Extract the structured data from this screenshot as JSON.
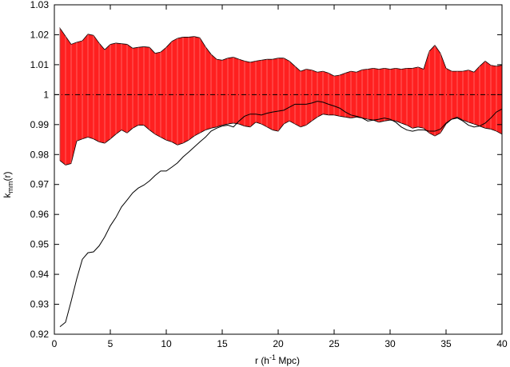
{
  "chart_data": {
    "type": "line",
    "title": "",
    "xlabel_parts": {
      "pre": "r (h",
      "sup": "-1",
      "post": " Mpc)"
    },
    "ylabel_parts": {
      "pre": "k",
      "sub": "mm",
      "post": "(r)"
    },
    "xlim": [
      0,
      40
    ],
    "ylim": [
      0.92,
      1.03
    ],
    "xticks": [
      0,
      5,
      10,
      15,
      20,
      25,
      30,
      35,
      40
    ],
    "xtick_labels": [
      "0",
      "5",
      "10",
      "15",
      "20",
      "25",
      "30",
      "35",
      "40"
    ],
    "yticks": [
      0.92,
      0.93,
      0.94,
      0.95,
      0.96,
      0.97,
      0.98,
      0.99,
      1.0,
      1.01,
      1.02,
      1.03
    ],
    "ytick_labels": [
      "0.92",
      "0.93",
      "0.94",
      "0.95",
      "0.96",
      "0.97",
      "0.98",
      "0.99",
      "1",
      "1.01",
      "1.02",
      "1.03"
    ],
    "grid": false,
    "reference_line": {
      "y": 1.0,
      "style": "dash-dot",
      "color": "#000000"
    },
    "band": {
      "color": "#ff2020",
      "x": [
        0.5,
        1.0,
        1.5,
        2.0,
        2.5,
        3.0,
        3.5,
        4.0,
        4.5,
        5.0,
        5.5,
        6.0,
        6.5,
        7.0,
        7.5,
        8.0,
        8.5,
        9.0,
        9.5,
        10.0,
        10.5,
        11.0,
        11.5,
        12.0,
        12.5,
        13.0,
        13.5,
        14.0,
        14.5,
        15.0,
        15.5,
        16.0,
        16.5,
        17.0,
        17.5,
        18.0,
        18.5,
        19.0,
        19.5,
        20.0,
        20.5,
        21.0,
        21.5,
        22.0,
        22.5,
        23.0,
        23.5,
        24.0,
        24.5,
        25.0,
        25.5,
        26.0,
        26.5,
        27.0,
        27.5,
        28.0,
        28.5,
        29.0,
        29.5,
        30.0,
        30.5,
        31.0,
        31.5,
        32.0,
        32.5,
        33.0,
        33.5,
        34.0,
        34.5,
        35.0,
        35.5,
        36.0,
        36.5,
        37.0,
        37.5,
        38.0,
        38.5,
        39.0,
        39.5,
        40.0
      ],
      "upper": [
        1.0222,
        1.0195,
        1.0168,
        1.0175,
        1.018,
        1.0202,
        1.0198,
        1.0172,
        1.015,
        1.0168,
        1.0172,
        1.017,
        1.0168,
        1.0155,
        1.0158,
        1.016,
        1.0158,
        1.0138,
        1.0142,
        1.0158,
        1.0178,
        1.0188,
        1.0192,
        1.0192,
        1.0194,
        1.019,
        1.016,
        1.0135,
        1.0118,
        1.0115,
        1.0122,
        1.0125,
        1.0118,
        1.0112,
        1.0108,
        1.0112,
        1.0115,
        1.0118,
        1.0118,
        1.0122,
        1.0122,
        1.0112,
        1.0095,
        1.0078,
        1.0085,
        1.0082,
        1.0075,
        1.0078,
        1.0072,
        1.0062,
        1.0065,
        1.0072,
        1.0078,
        1.0075,
        1.0083,
        1.0085,
        1.0088,
        1.0085,
        1.0088,
        1.0085,
        1.0088,
        1.0085,
        1.0088,
        1.0088,
        1.0092,
        1.0085,
        1.0145,
        1.0165,
        1.0138,
        1.0088,
        1.0078,
        1.0078,
        1.0078,
        1.0082,
        1.0075,
        1.0095,
        1.0112,
        1.0098,
        1.0095,
        1.0098
      ],
      "lower": [
        0.978,
        0.9765,
        0.977,
        0.9845,
        0.9852,
        0.9858,
        0.9852,
        0.9842,
        0.9838,
        0.9852,
        0.9868,
        0.9882,
        0.9872,
        0.9888,
        0.9898,
        0.9898,
        0.9882,
        0.9868,
        0.9858,
        0.9848,
        0.9842,
        0.9832,
        0.9838,
        0.9848,
        0.9862,
        0.9872,
        0.9882,
        0.9888,
        0.9892,
        0.9898,
        0.9902,
        0.9905,
        0.9902,
        0.9895,
        0.9892,
        0.9908,
        0.9902,
        0.9892,
        0.9882,
        0.9878,
        0.9902,
        0.9912,
        0.9902,
        0.9892,
        0.9898,
        0.9912,
        0.9925,
        0.9935,
        0.9932,
        0.9932,
        0.9928,
        0.9925,
        0.9922,
        0.9925,
        0.9922,
        0.9918,
        0.9915,
        0.9908,
        0.9912,
        0.9915,
        0.9912,
        0.9905,
        0.9898,
        0.9888,
        0.9892,
        0.9888,
        0.9872,
        0.9862,
        0.9872,
        0.9902,
        0.9918,
        0.9925,
        0.9915,
        0.9908,
        0.9902,
        0.9895,
        0.9888,
        0.9885,
        0.9878,
        0.9868
      ]
    },
    "series": [
      {
        "color": "#000000",
        "x": [
          0.5,
          1.0,
          1.5,
          2.0,
          2.5,
          3.0,
          3.5,
          4.0,
          4.5,
          5.0,
          5.5,
          6.0,
          6.5,
          7.0,
          7.5,
          8.0,
          8.5,
          9.0,
          9.5,
          10.0,
          10.5,
          11.0,
          11.5,
          12.0,
          12.5,
          13.0,
          13.5,
          14.0,
          14.5,
          15.0,
          15.5,
          16.0,
          16.5,
          17.0,
          17.5,
          18.0,
          18.5,
          19.0,
          19.5,
          20.0,
          20.5,
          21.0,
          21.5,
          22.0,
          22.5,
          23.0,
          23.5,
          24.0,
          24.5,
          25.0,
          25.5,
          26.0,
          26.5,
          27.0,
          27.5,
          28.0,
          28.5,
          29.0,
          29.5,
          30.0,
          30.5,
          31.0,
          31.5,
          32.0,
          32.5,
          33.0,
          33.5,
          34.0,
          34.5,
          35.0,
          35.5,
          36.0,
          36.5,
          37.0,
          37.5,
          38.0,
          38.5,
          39.0,
          39.5,
          40.0
        ],
        "values": [
          0.9225,
          0.924,
          0.931,
          0.9385,
          0.945,
          0.9472,
          0.9475,
          0.9495,
          0.9525,
          0.9562,
          0.959,
          0.9625,
          0.9648,
          0.9672,
          0.9688,
          0.9698,
          0.9712,
          0.973,
          0.9745,
          0.9745,
          0.9758,
          0.9772,
          0.9792,
          0.9808,
          0.9825,
          0.9842,
          0.9858,
          0.9878,
          0.9888,
          0.9895,
          0.9898,
          0.9892,
          0.9912,
          0.9928,
          0.9935,
          0.9935,
          0.9932,
          0.9938,
          0.9942,
          0.9945,
          0.9948,
          0.9958,
          0.9968,
          0.9968,
          0.9968,
          0.9972,
          0.9978,
          0.9975,
          0.9968,
          0.9962,
          0.9955,
          0.9942,
          0.9932,
          0.9928,
          0.9922,
          0.9912,
          0.9915,
          0.9918,
          0.9922,
          0.9918,
          0.9908,
          0.9892,
          0.9882,
          0.9878,
          0.9882,
          0.9882,
          0.9878,
          0.9878,
          0.9885,
          0.9905,
          0.9918,
          0.9922,
          0.9912,
          0.9898,
          0.9892,
          0.9895,
          0.9905,
          0.9922,
          0.9942,
          0.9952
        ]
      }
    ]
  }
}
